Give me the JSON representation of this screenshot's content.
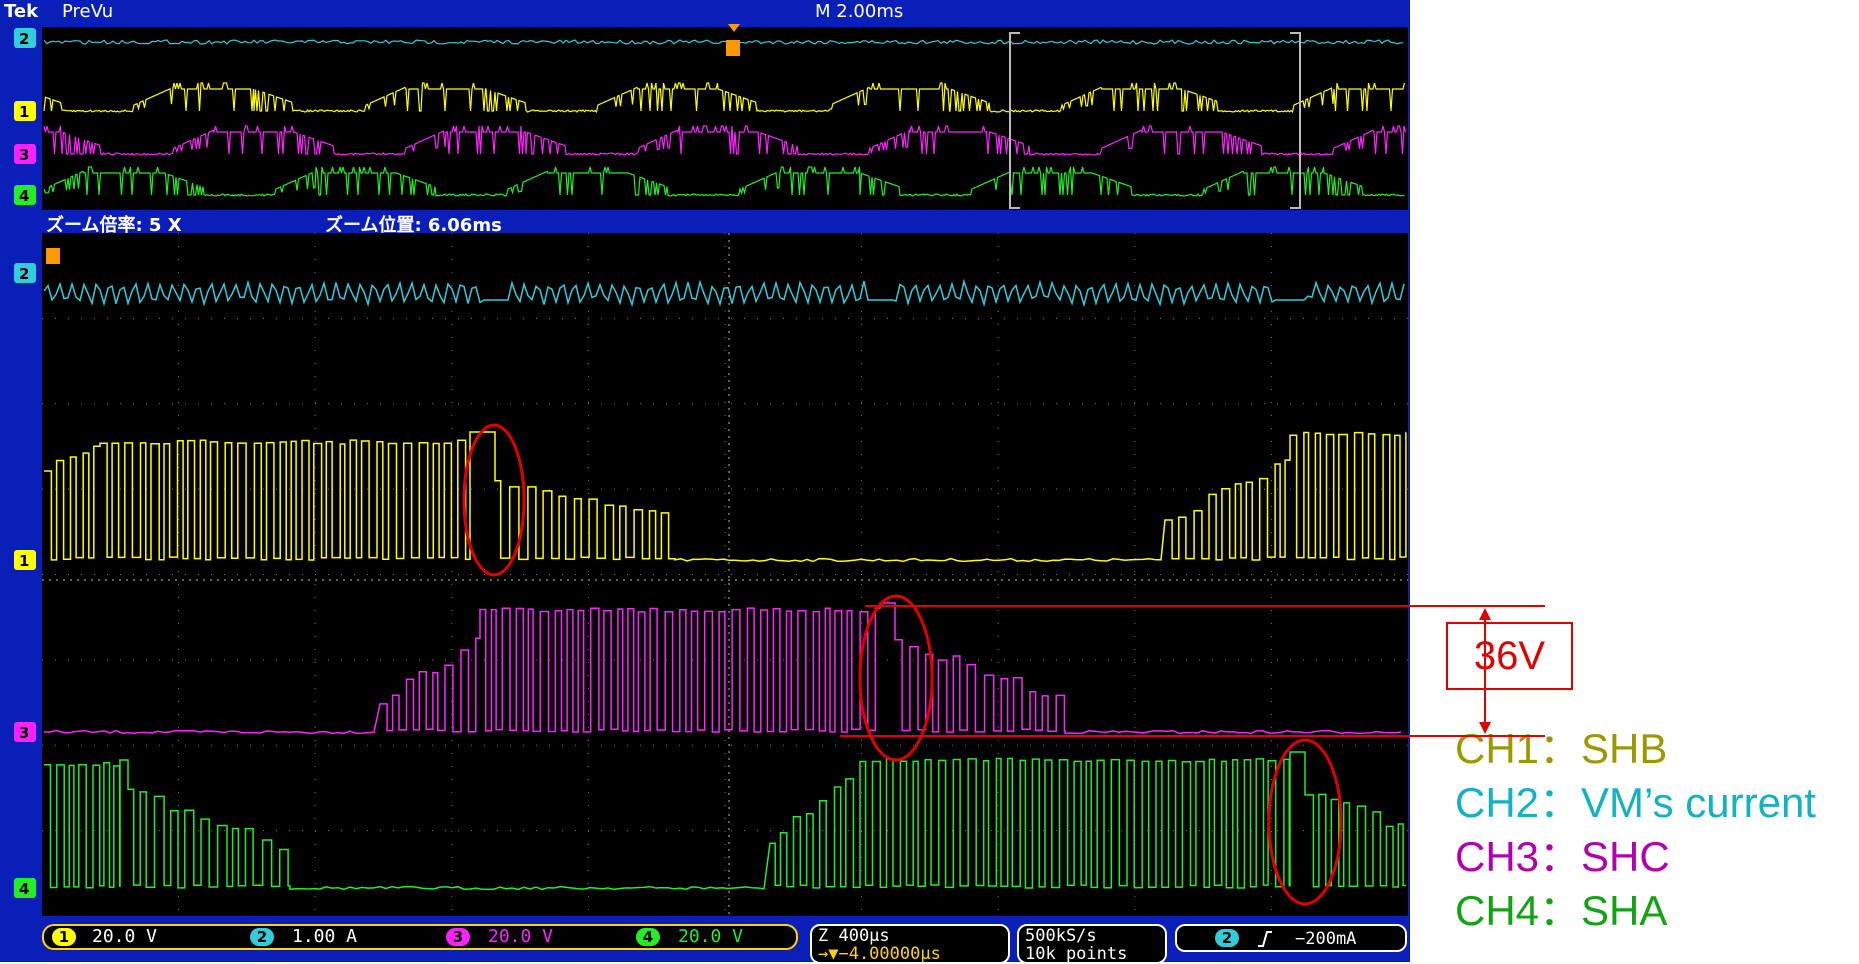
{
  "topbar": {
    "brand": "Tek",
    "mode": "PreVu",
    "timebase": "M 2.00ms"
  },
  "zoom": {
    "factor": "ズーム倍率: 5 X",
    "position": "ズーム位置: 6.06ms"
  },
  "channels": [
    {
      "id": "1",
      "label": "SHB",
      "scale": "20.0 V",
      "color": "#ffff00"
    },
    {
      "id": "2",
      "label": "VM's current",
      "scale": "1.00 A",
      "color": "#33ccdd"
    },
    {
      "id": "3",
      "label": "SHC",
      "scale": "20.0 V",
      "color": "#ff22ff"
    },
    {
      "id": "4",
      "label": "SHA",
      "scale": "20.0 V",
      "color": "#22ee22"
    }
  ],
  "status": {
    "zoom_time": "Z 400μs",
    "trigger_offset": "→▼−4.00000μs",
    "sample_rate": "500kS/s",
    "record_length": "10k points",
    "trigger_channel": "2",
    "trigger_slope_icon": "rising-edge-icon",
    "trigger_level": "−200mA"
  },
  "annotation": {
    "label": "36V",
    "color": "#e00000"
  },
  "legend": [
    {
      "text": "CH1：SHB",
      "color": "#9a9a00"
    },
    {
      "text": "CH2：VM’s current",
      "color": "#11b3c3"
    },
    {
      "text": "CH3：SHC",
      "color": "#b000b0"
    },
    {
      "text": "CH4：SHA",
      "color": "#11a311"
    }
  ]
}
